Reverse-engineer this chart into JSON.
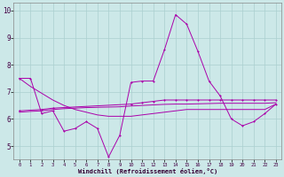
{
  "xlabel": "Windchill (Refroidissement éolien,°C)",
  "xlim": [
    -0.5,
    23.5
  ],
  "ylim": [
    4.5,
    10.3
  ],
  "yticks": [
    5,
    6,
    7,
    8,
    9,
    10
  ],
  "xticks": [
    0,
    1,
    2,
    3,
    4,
    5,
    6,
    7,
    8,
    9,
    10,
    11,
    12,
    13,
    14,
    15,
    16,
    17,
    18,
    19,
    20,
    21,
    22,
    23
  ],
  "bg_color": "#cce8e8",
  "grid_color": "#aacfcf",
  "line_color": "#aa00aa",
  "line1_x": [
    0,
    1,
    2,
    3,
    4,
    5,
    6,
    7,
    8,
    9,
    10,
    11,
    12,
    13,
    14,
    15,
    16,
    17,
    18,
    19,
    20,
    21,
    22,
    23
  ],
  "line1_y": [
    7.5,
    7.5,
    6.2,
    6.3,
    5.55,
    5.65,
    5.9,
    5.65,
    4.6,
    5.4,
    7.35,
    7.4,
    7.4,
    8.55,
    9.85,
    9.5,
    8.5,
    7.4,
    6.85,
    6.0,
    5.75,
    5.9,
    6.2,
    6.55
  ],
  "line2_x": [
    0,
    1,
    2,
    3,
    4,
    5,
    6,
    7,
    8,
    9,
    10,
    11,
    12,
    13,
    14,
    15,
    16,
    17,
    18,
    19,
    20,
    21,
    22,
    23
  ],
  "line2_y": [
    7.5,
    7.2,
    6.95,
    6.7,
    6.5,
    6.35,
    6.25,
    6.15,
    6.1,
    6.1,
    6.1,
    6.15,
    6.2,
    6.25,
    6.3,
    6.35,
    6.35,
    6.35,
    6.35,
    6.35,
    6.35,
    6.35,
    6.35,
    6.55
  ],
  "line3_x": [
    0,
    2,
    3,
    10,
    11,
    12,
    13,
    14,
    15,
    16,
    17,
    18,
    19,
    20,
    21,
    22,
    23
  ],
  "line3_y": [
    6.3,
    6.35,
    6.4,
    6.55,
    6.6,
    6.65,
    6.7,
    6.7,
    6.7,
    6.7,
    6.7,
    6.7,
    6.7,
    6.7,
    6.7,
    6.7,
    6.7
  ],
  "line4_x": [
    0,
    1,
    2,
    3,
    4,
    5,
    6,
    7,
    8,
    9,
    10,
    11,
    12,
    13,
    14,
    15,
    16,
    17,
    18,
    19,
    20,
    21,
    22,
    23
  ],
  "line4_y": [
    6.25,
    6.28,
    6.3,
    6.35,
    6.38,
    6.4,
    6.42,
    6.43,
    6.44,
    6.45,
    6.48,
    6.5,
    6.52,
    6.54,
    6.55,
    6.55,
    6.56,
    6.57,
    6.58,
    6.58,
    6.58,
    6.58,
    6.58,
    6.6
  ]
}
